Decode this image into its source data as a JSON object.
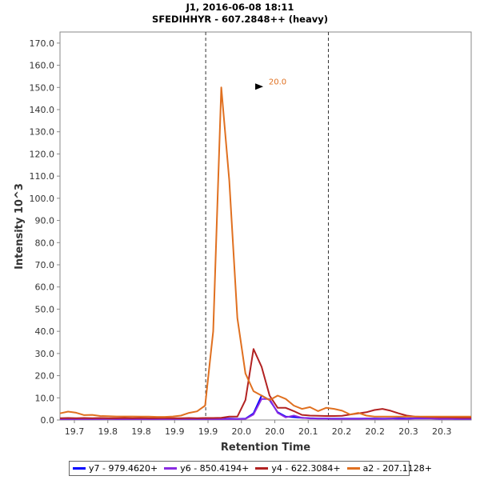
{
  "chart_data": {
    "type": "line",
    "title": "J1, 2016-06-08 18:11",
    "subtitle": "SFEDIHHYR - 607.2848++ (heavy)",
    "xlabel": "Retention Time",
    "ylabel": "Intensity 10^3",
    "xlim": [
      19.672,
      20.386
    ],
    "ylim": [
      0,
      175
    ],
    "x_ticks": [
      {
        "value": 19.697,
        "label": "19.7"
      },
      {
        "value": 19.755,
        "label": "19.8"
      },
      {
        "value": 19.813,
        "label": "19.8"
      },
      {
        "value": 19.871,
        "label": "19.9"
      },
      {
        "value": 19.929,
        "label": "19.9"
      },
      {
        "value": 19.987,
        "label": "20.0"
      },
      {
        "value": 20.045,
        "label": "20.0"
      },
      {
        "value": 20.103,
        "label": "20.1"
      },
      {
        "value": 20.161,
        "label": "20.2"
      },
      {
        "value": 20.219,
        "label": "20.2"
      },
      {
        "value": 20.277,
        "label": "20.3"
      },
      {
        "value": 20.335,
        "label": "20.3"
      }
    ],
    "y_ticks": [
      {
        "value": 0,
        "label": "0.0"
      },
      {
        "value": 10,
        "label": "10.0"
      },
      {
        "value": 20,
        "label": "20.0"
      },
      {
        "value": 30,
        "label": "30.0"
      },
      {
        "value": 40,
        "label": "40.0"
      },
      {
        "value": 50,
        "label": "50.0"
      },
      {
        "value": 60,
        "label": "60.0"
      },
      {
        "value": 70,
        "label": "70.0"
      },
      {
        "value": 80,
        "label": "80.0"
      },
      {
        "value": 90,
        "label": "90.0"
      },
      {
        "value": 100,
        "label": "100.0"
      },
      {
        "value": 110,
        "label": "110.0"
      },
      {
        "value": 120,
        "label": "120.0"
      },
      {
        "value": 130,
        "label": "130.0"
      },
      {
        "value": 140,
        "label": "140.0"
      },
      {
        "value": 150,
        "label": "150.0"
      },
      {
        "value": 160,
        "label": "160.0"
      },
      {
        "value": 170,
        "label": "170.0"
      }
    ],
    "x": [
      19.672,
      19.686,
      19.7,
      19.714,
      19.728,
      19.742,
      19.756,
      19.77,
      19.784,
      19.798,
      19.812,
      19.826,
      19.84,
      19.854,
      19.868,
      19.882,
      19.896,
      19.91,
      19.924,
      19.938,
      19.952,
      19.966,
      19.98,
      19.994,
      20.008,
      20.022,
      20.036,
      20.05,
      20.064,
      20.078,
      20.092,
      20.106,
      20.12,
      20.134,
      20.148,
      20.162,
      20.176,
      20.19,
      20.204,
      20.218,
      20.232,
      20.246,
      20.26,
      20.274,
      20.288,
      20.302,
      20.316,
      20.33,
      20.344,
      20.358,
      20.372,
      20.386
    ],
    "series": [
      {
        "name": "y7 - 979.4620+",
        "color": "#0000ff",
        "values": [
          0.5,
          0.5,
          0.5,
          0.6,
          0.5,
          0.6,
          0.6,
          0.5,
          0.5,
          0.5,
          0.5,
          0.5,
          0.5,
          0.6,
          0.5,
          0.5,
          0.5,
          0.5,
          0.5,
          0.5,
          0.5,
          0.6,
          0.5,
          0.6,
          3.0,
          11.0,
          9.0,
          3.5,
          1.5,
          1.3,
          1.0,
          0.8,
          0.7,
          0.7,
          0.6,
          0.6,
          0.6,
          0.6,
          0.7,
          0.7,
          0.6,
          0.7,
          0.8,
          0.7,
          0.8,
          0.9,
          1.1,
          0.5,
          0.6,
          0.5,
          0.5,
          0.5
        ]
      },
      {
        "name": "y6 - 850.4194+",
        "color": "#8a2be2",
        "values": [
          0.4,
          0.4,
          0.4,
          0.4,
          0.4,
          0.4,
          0.5,
          0.4,
          0.4,
          0.4,
          0.4,
          0.4,
          0.4,
          0.4,
          0.4,
          0.5,
          0.4,
          0.4,
          0.4,
          0.4,
          0.4,
          0.4,
          0.4,
          0.5,
          2.5,
          9.5,
          9.5,
          3.2,
          1.2,
          2.0,
          1.0,
          0.7,
          0.6,
          0.6,
          0.5,
          0.5,
          0.5,
          0.5,
          0.6,
          0.5,
          0.5,
          0.6,
          0.5,
          0.5,
          0.6,
          0.6,
          0.6,
          0.5,
          0.5,
          0.5,
          0.5,
          0.5
        ]
      },
      {
        "name": "y4 - 622.3084+",
        "color": "#b22222",
        "values": [
          0.8,
          0.9,
          0.8,
          0.9,
          0.8,
          0.9,
          0.8,
          0.8,
          0.9,
          0.8,
          0.9,
          0.8,
          0.8,
          0.9,
          0.8,
          0.8,
          0.9,
          0.8,
          0.9,
          0.9,
          1.0,
          1.5,
          1.5,
          9.0,
          32.0,
          24.0,
          11.0,
          5.5,
          5.5,
          4.0,
          2.3,
          2.0,
          1.9,
          1.8,
          1.8,
          1.9,
          2.5,
          3.0,
          3.5,
          4.5,
          5.0,
          4.2,
          3.0,
          2.0,
          1.5,
          1.4,
          1.3,
          1.2,
          1.2,
          1.1,
          1.0,
          1.0
        ]
      },
      {
        "name": "a2 - 207.1128+",
        "color": "#e07020",
        "values": [
          3.0,
          3.8,
          3.3,
          2.2,
          2.3,
          1.8,
          1.7,
          1.6,
          1.6,
          1.6,
          1.5,
          1.5,
          1.4,
          1.4,
          1.6,
          2.0,
          3.2,
          3.9,
          6.5,
          40.0,
          150.0,
          108.0,
          46.0,
          21.0,
          13.0,
          11.0,
          9.0,
          11.0,
          9.5,
          6.5,
          5.0,
          5.8,
          4.0,
          5.5,
          5.0,
          4.2,
          2.5,
          3.2,
          2.0,
          1.5,
          1.5,
          1.5,
          1.5,
          1.5,
          1.5,
          1.5,
          1.5,
          1.5,
          1.5,
          1.5,
          1.5,
          1.5
        ]
      }
    ],
    "reference_lines_x": [
      19.925,
      20.138
    ],
    "peak_annotation": {
      "label": "20.0",
      "x": 20.036,
      "y": 150.0,
      "color": "#e07020"
    },
    "legend_position": "bottom"
  }
}
